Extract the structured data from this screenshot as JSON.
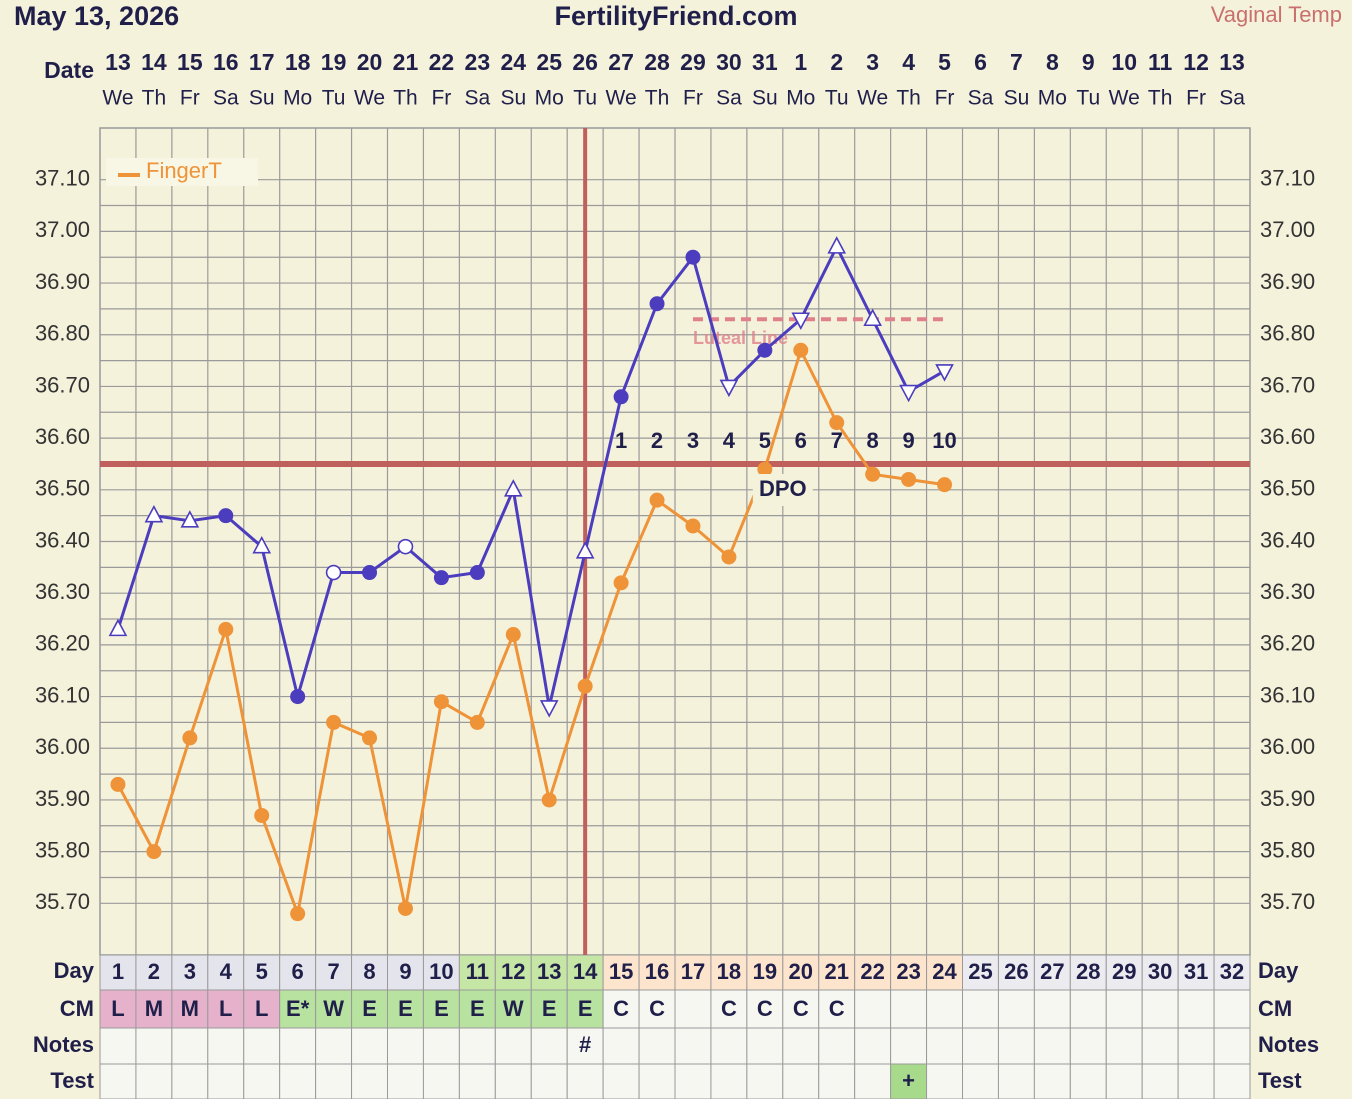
{
  "chart_data": {
    "type": "line",
    "title": "FertilityFriend.com",
    "date_printed": "May 13, 2026",
    "row_labels": {
      "date": "Date",
      "day": "Day",
      "cm": "CM",
      "notes": "Notes",
      "test": "Test"
    },
    "dates": [
      "13",
      "14",
      "15",
      "16",
      "17",
      "18",
      "19",
      "20",
      "21",
      "22",
      "23",
      "24",
      "25",
      "26",
      "27",
      "28",
      "29",
      "30",
      "31",
      "1",
      "2",
      "3",
      "4",
      "5",
      "6",
      "7",
      "8",
      "9",
      "10",
      "11",
      "12",
      "13"
    ],
    "weekdays": [
      "We",
      "Th",
      "Fr",
      "Sa",
      "Su",
      "Mo",
      "Tu",
      "We",
      "Th",
      "Fr",
      "Sa",
      "Su",
      "Mo",
      "Tu",
      "We",
      "Th",
      "Fr",
      "Sa",
      "Su",
      "Mo",
      "Tu",
      "We",
      "Th",
      "Fr",
      "Sa",
      "Su",
      "Mo",
      "Tu",
      "We",
      "Th",
      "Fr",
      "Sa"
    ],
    "categories": [
      1,
      2,
      3,
      4,
      5,
      6,
      7,
      8,
      9,
      10,
      11,
      12,
      13,
      14,
      15,
      16,
      17,
      18,
      19,
      20,
      21,
      22,
      23,
      24,
      25,
      26,
      27,
      28,
      29,
      30,
      31,
      32
    ],
    "day_fills": [
      "#e4e4ec",
      "#e4e4ec",
      "#e4e4ec",
      "#e4e4ec",
      "#e4e4ec",
      "#e4e4ec",
      "#e4e4ec",
      "#e4e4ec",
      "#e4e4ec",
      "#e4e4ec",
      "#c6e6a6",
      "#c6e6a6",
      "#c6e6a6",
      "#c6e6a6",
      "#fce4cd",
      "#fce4cd",
      "#fce4cd",
      "#fce4cd",
      "#fce4cd",
      "#fce4cd",
      "#fce4cd",
      "#fce4cd",
      "#fce4cd",
      "#fce4cd",
      "#ebebf0",
      "#ebebf0",
      "#ebebf0",
      "#ebebf0",
      "#ebebf0",
      "#ebebf0",
      "#ebebf0",
      "#ebebf0"
    ],
    "cm": [
      "L",
      "M",
      "M",
      "L",
      "L",
      "E*",
      "W",
      "E",
      "E",
      "E",
      "E",
      "W",
      "E",
      "E",
      "C",
      "C",
      null,
      "C",
      "C",
      "C",
      "C",
      null,
      null,
      null,
      null,
      null,
      null,
      null,
      null,
      null,
      null,
      null
    ],
    "cm_colors": {
      "L": "#e6b2cb",
      "M": "#e6b2cb",
      "E*": "#b7e2a0",
      "W": "#b7e2a0",
      "E": "#b7e2a0"
    },
    "notes": [
      null,
      null,
      null,
      null,
      null,
      null,
      null,
      null,
      null,
      null,
      null,
      null,
      null,
      "#",
      null,
      null,
      null,
      null,
      null,
      null,
      null,
      null,
      null,
      null,
      null,
      null,
      null,
      null,
      null,
      null,
      null,
      null
    ],
    "test": [
      null,
      null,
      null,
      null,
      null,
      null,
      null,
      null,
      null,
      null,
      null,
      null,
      null,
      null,
      null,
      null,
      null,
      null,
      null,
      null,
      null,
      null,
      "+",
      null,
      null,
      null,
      null,
      null,
      null,
      null,
      null,
      null
    ],
    "test_color": "#a8da8c",
    "dpo_label": "DPO",
    "dpo": [
      null,
      null,
      null,
      null,
      null,
      null,
      null,
      null,
      null,
      null,
      null,
      null,
      null,
      null,
      1,
      2,
      3,
      4,
      5,
      6,
      7,
      8,
      9,
      10,
      null,
      null,
      null,
      null,
      null,
      null,
      null,
      null
    ],
    "coverline": 36.55,
    "coverline_color": "#c0605c",
    "ovulation_day": 14,
    "luteal_line": {
      "label": "Luteal Line",
      "value": 36.83,
      "from": 17,
      "to": 24,
      "color": "#e0808a"
    },
    "series": [
      {
        "name": "Vaginal Temp",
        "color": "#4b3dbd",
        "values": [
          36.23,
          36.45,
          36.44,
          36.45,
          36.39,
          36.1,
          36.34,
          36.34,
          36.39,
          36.33,
          36.34,
          36.5,
          36.08,
          36.38,
          36.68,
          36.86,
          36.95,
          36.7,
          36.77,
          36.83,
          36.97,
          36.83,
          36.69,
          36.73,
          null,
          null,
          null,
          null,
          null,
          null,
          null,
          null
        ],
        "markers": [
          "up",
          "up",
          "up",
          "circle",
          "up",
          "circle",
          "open",
          "circle",
          "open",
          "circle",
          "circle",
          "up",
          "down",
          "up",
          "circle",
          "circle",
          "circle",
          "down",
          "circle",
          "down",
          "up",
          "up",
          "down",
          "down",
          null,
          null,
          null,
          null,
          null,
          null,
          null,
          null
        ]
      },
      {
        "name": "FingerT",
        "color": "#ef9338",
        "values": [
          35.93,
          35.8,
          36.02,
          36.23,
          35.87,
          35.68,
          36.05,
          36.02,
          35.69,
          36.09,
          36.05,
          36.22,
          35.9,
          36.12,
          36.32,
          36.48,
          36.43,
          36.37,
          36.54,
          36.77,
          36.63,
          36.53,
          36.52,
          36.51,
          null,
          null,
          null,
          null,
          null,
          null,
          null,
          null
        ],
        "markers": [
          "circle",
          "circle",
          "circle",
          "circle",
          "circle",
          "circle",
          "circle",
          "circle",
          "circle",
          "circle",
          "circle",
          "circle",
          "circle",
          "circle",
          "circle",
          "circle",
          "circle",
          "circle",
          "circle",
          "circle",
          "circle",
          "circle",
          "circle",
          "circle",
          null,
          null,
          null,
          null,
          null,
          null,
          null,
          null
        ]
      }
    ],
    "legend_series": 1,
    "ylim": [
      35.6,
      37.2
    ],
    "yticks": [
      {
        "value": 35.7,
        "label": "35.70"
      },
      {
        "value": 35.8,
        "label": "35.80"
      },
      {
        "value": 35.9,
        "label": "35.90"
      },
      {
        "value": 36.0,
        "label": "36.00"
      },
      {
        "value": 36.1,
        "label": "36.10"
      },
      {
        "value": 36.2,
        "label": "36.20"
      },
      {
        "value": 36.3,
        "label": "36.30"
      },
      {
        "value": 36.4,
        "label": "36.40"
      },
      {
        "value": 36.5,
        "label": "36.50"
      },
      {
        "value": 36.6,
        "label": "36.60"
      },
      {
        "value": 36.7,
        "label": "36.70"
      },
      {
        "value": 36.8,
        "label": "36.80"
      },
      {
        "value": 36.9,
        "label": "36.90"
      },
      {
        "value": 37.0,
        "label": "37.00"
      },
      {
        "value": 37.1,
        "label": "37.10"
      }
    ],
    "grid": true
  }
}
